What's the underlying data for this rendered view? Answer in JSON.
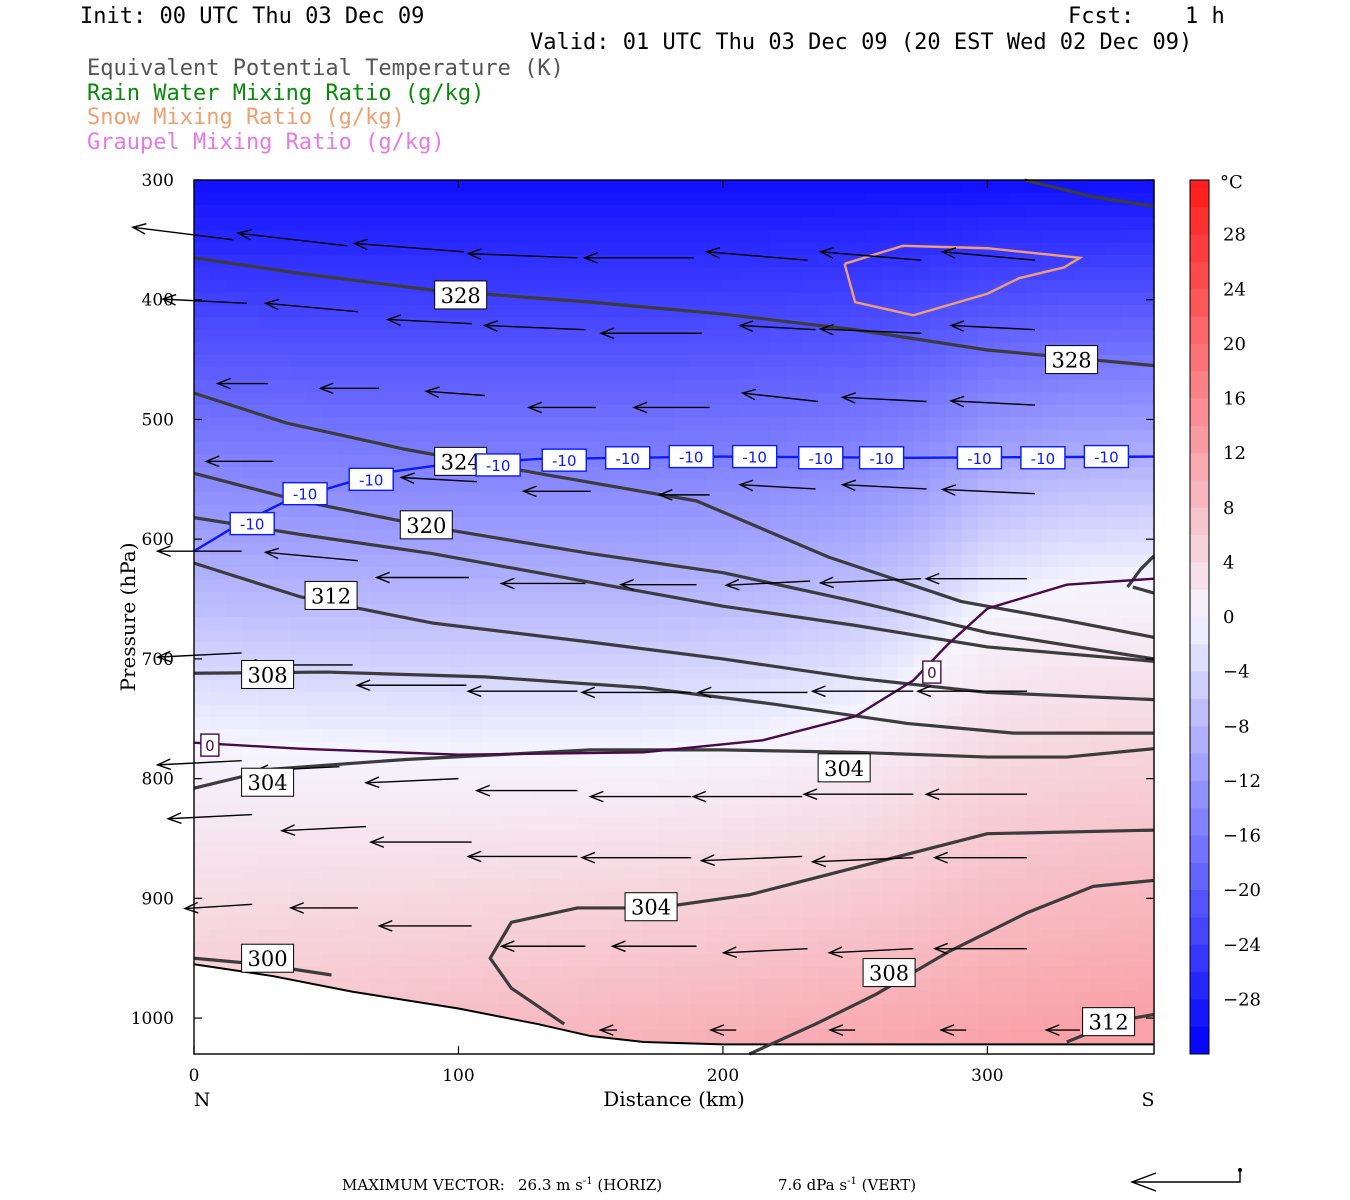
{
  "header": {
    "init": "Init: 00 UTC Thu 03 Dec 09",
    "fcst_label": "Fcst:",
    "fcst_value": "1 h",
    "valid": "Valid: 01 UTC Thu 03 Dec 09 (20 EST Wed 02 Dec 09)"
  },
  "legend_items": [
    {
      "text": "Equivalent Potential Temperature (K)",
      "color": "#555555"
    },
    {
      "text": "Rain Water Mixing Ratio (g/kg)",
      "color": "#0a8a0a"
    },
    {
      "text": "Snow Mixing Ratio (g/kg)",
      "color": "#f0a070"
    },
    {
      "text": "Graupel Mixing Ratio (g/kg)",
      "color": "#e878e8"
    }
  ],
  "chart_data": {
    "type": "heatmap",
    "subtype": "vertical cross-section",
    "xlabel": "Distance (km)",
    "ylabel": "Pressure (hPa)",
    "xlim": [
      0,
      363
    ],
    "ylim": [
      1030,
      300
    ],
    "x_ticks": [
      0,
      100,
      200,
      300
    ],
    "y_ticks": [
      300,
      400,
      500,
      600,
      700,
      800,
      900,
      1000
    ],
    "left_end_label": "N",
    "right_end_label": "S",
    "colorbar": {
      "unit": "°C",
      "tick_values": [
        28,
        24,
        20,
        16,
        12,
        8,
        4,
        0,
        -4,
        -8,
        -12,
        -16,
        -20,
        -24,
        -28
      ],
      "min": -32,
      "max": 32,
      "cold_color": "#0000ff",
      "zero_color": "#f5f5ff",
      "warm_color": "#ff1a1a"
    },
    "temperature_field_trend": "coldest (~-30 °C) at 300 hPa, 0 °C near 770 hPa in the north rising to ~650 hPa in the south, warmest (~12 °C) near the surface in the south",
    "theta_e_contours": [
      {
        "label": "328",
        "points": [
          [
            0,
            365
          ],
          [
            40,
            378
          ],
          [
            90,
            392
          ],
          [
            150,
            402
          ],
          [
            200,
            412
          ],
          [
            250,
            425
          ],
          [
            300,
            442
          ],
          [
            363,
            455
          ]
        ]
      },
      {
        "label": "328",
        "points": [
          [
            314,
            300
          ],
          [
            340,
            314
          ],
          [
            363,
            322
          ]
        ]
      },
      {
        "label": "324",
        "points": [
          [
            0,
            478
          ],
          [
            35,
            503
          ],
          [
            80,
            525
          ],
          [
            130,
            545
          ],
          [
            190,
            568
          ],
          [
            240,
            615
          ],
          [
            290,
            652
          ],
          [
            330,
            668
          ],
          [
            363,
            682
          ]
        ]
      },
      {
        "label": "320",
        "points": [
          [
            0,
            545
          ],
          [
            40,
            568
          ],
          [
            90,
            590
          ],
          [
            150,
            612
          ],
          [
            200,
            628
          ],
          [
            250,
            652
          ],
          [
            300,
            678
          ],
          [
            363,
            700
          ]
        ]
      },
      {
        "label": "312",
        "points": [
          [
            0,
            582
          ],
          [
            40,
            596
          ],
          [
            90,
            612
          ],
          [
            150,
            636
          ],
          [
            200,
            656
          ],
          [
            250,
            672
          ],
          [
            300,
            690
          ],
          [
            363,
            702
          ]
        ]
      },
      {
        "label": "312",
        "points": [
          [
            0,
            620
          ],
          [
            40,
            648
          ],
          [
            90,
            670
          ],
          [
            150,
            686
          ],
          [
            200,
            700
          ],
          [
            250,
            716
          ],
          [
            300,
            728
          ],
          [
            363,
            734
          ]
        ]
      },
      {
        "label": "308",
        "points": [
          [
            0,
            712
          ],
          [
            50,
            711
          ],
          [
            110,
            715
          ],
          [
            170,
            724
          ],
          [
            220,
            738
          ],
          [
            270,
            754
          ],
          [
            310,
            762
          ],
          [
            363,
            762
          ]
        ]
      },
      {
        "label": "304",
        "points": [
          [
            0,
            808
          ],
          [
            30,
            792
          ],
          [
            80,
            784
          ],
          [
            150,
            776
          ],
          [
            200,
            776
          ],
          [
            250,
            778
          ],
          [
            300,
            782
          ],
          [
            330,
            782
          ],
          [
            363,
            775
          ]
        ]
      },
      {
        "label": "304",
        "points": [
          [
            140,
            1005
          ],
          [
            120,
            975
          ],
          [
            112,
            950
          ],
          [
            120,
            920
          ],
          [
            145,
            908
          ],
          [
            175,
            908
          ],
          [
            210,
            897
          ],
          [
            240,
            880
          ],
          [
            300,
            846
          ],
          [
            363,
            843
          ]
        ]
      },
      {
        "label": "308",
        "points": [
          [
            210,
            1030
          ],
          [
            235,
            1005
          ],
          [
            258,
            980
          ],
          [
            285,
            945
          ],
          [
            315,
            912
          ],
          [
            340,
            890
          ],
          [
            363,
            885
          ]
        ]
      },
      {
        "label": "312",
        "points": [
          [
            330,
            1020
          ],
          [
            350,
            1002
          ],
          [
            363,
            997
          ]
        ]
      },
      {
        "label": "300",
        "points": [
          [
            0,
            950
          ],
          [
            25,
            955
          ],
          [
            52,
            964
          ]
        ]
      },
      {
        "label": "",
        "points": [
          [
            353,
            640
          ],
          [
            358,
            625
          ],
          [
            363,
            614
          ]
        ]
      },
      {
        "label": "",
        "points": [
          [
            355,
            640
          ],
          [
            363,
            645
          ]
        ]
      }
    ],
    "isotherm_0c": [
      [
        0,
        770
      ],
      [
        40,
        775
      ],
      [
        100,
        780
      ],
      [
        170,
        778
      ],
      [
        215,
        768
      ],
      [
        250,
        748
      ],
      [
        272,
        718
      ],
      [
        285,
        688
      ],
      [
        300,
        658
      ],
      [
        330,
        638
      ],
      [
        363,
        633
      ]
    ],
    "isotherm_minus10c": [
      [
        0,
        610
      ],
      [
        15,
        590
      ],
      [
        35,
        568
      ],
      [
        70,
        545
      ],
      [
        90,
        539
      ],
      [
        130,
        533
      ],
      [
        200,
        531
      ],
      [
        270,
        532
      ],
      [
        363,
        531
      ]
    ],
    "snow_mixing_ratio_contour": [
      [
        246,
        370
      ],
      [
        268,
        355
      ],
      [
        300,
        357
      ],
      [
        335,
        365
      ],
      [
        329,
        373
      ],
      [
        312,
        382
      ],
      [
        300,
        395
      ],
      [
        272,
        413
      ],
      [
        250,
        402
      ],
      [
        246,
        370
      ]
    ],
    "contour_labels": [
      {
        "text": "328",
        "x": 91,
        "p": 396
      },
      {
        "text": "328",
        "x": 322,
        "p": 450
      },
      {
        "text": "324",
        "x": 91,
        "p": 535
      },
      {
        "text": "320",
        "x": 78,
        "p": 588
      },
      {
        "text": "312",
        "x": 42,
        "p": 647
      },
      {
        "text": "308",
        "x": 18,
        "p": 713
      },
      {
        "text": "304",
        "x": 18,
        "p": 803
      },
      {
        "text": "304",
        "x": 236,
        "p": 791
      },
      {
        "text": "304",
        "x": 163,
        "p": 907
      },
      {
        "text": "308",
        "x": 253,
        "p": 962
      },
      {
        "text": "312",
        "x": 336,
        "p": 1003
      },
      {
        "text": "300",
        "x": 18,
        "p": 950
      }
    ],
    "isotherm_labels": [
      {
        "text": "-10",
        "x": 22,
        "p": 587
      },
      {
        "text": "-10",
        "x": 42,
        "p": 562
      },
      {
        "text": "-10",
        "x": 67,
        "p": 550
      },
      {
        "text": "-10",
        "x": 115,
        "p": 538
      },
      {
        "text": "-10",
        "x": 140,
        "p": 534
      },
      {
        "text": "-10",
        "x": 164,
        "p": 532
      },
      {
        "text": "-10",
        "x": 188,
        "p": 531
      },
      {
        "text": "-10",
        "x": 212,
        "p": 531
      },
      {
        "text": "-10",
        "x": 237,
        "p": 532
      },
      {
        "text": "-10",
        "x": 260,
        "p": 532
      },
      {
        "text": "-10",
        "x": 297,
        "p": 532
      },
      {
        "text": "-10",
        "x": 321,
        "p": 532
      },
      {
        "text": "-10",
        "x": 345,
        "p": 531
      },
      {
        "text": "0",
        "x": 6,
        "p": 772
      },
      {
        "text": "0",
        "x": 279,
        "p": 711
      }
    ],
    "wind_vectors": [
      {
        "x": 15,
        "p": 350,
        "u": -24,
        "w": 3
      },
      {
        "x": 58,
        "p": 355,
        "u": -26,
        "w": 3
      },
      {
        "x": 102,
        "p": 360,
        "u": -26,
        "w": 2
      },
      {
        "x": 145,
        "p": 365,
        "u": -26,
        "w": 1
      },
      {
        "x": 189,
        "p": 365,
        "u": -26,
        "w": 0
      },
      {
        "x": 232,
        "p": 367,
        "u": -24,
        "w": 2
      },
      {
        "x": 275,
        "p": 367,
        "u": -24,
        "w": 2
      },
      {
        "x": 318,
        "p": 367,
        "u": -22,
        "w": 2
      },
      {
        "x": 20,
        "p": 403,
        "u": -20,
        "w": 1
      },
      {
        "x": 62,
        "p": 410,
        "u": -22,
        "w": 2
      },
      {
        "x": 105,
        "p": 420,
        "u": -20,
        "w": 1
      },
      {
        "x": 148,
        "p": 425,
        "u": -24,
        "w": 1
      },
      {
        "x": 192,
        "p": 428,
        "u": -24,
        "w": 0
      },
      {
        "x": 235,
        "p": 425,
        "u": -18,
        "w": 1
      },
      {
        "x": 275,
        "p": 428,
        "u": -24,
        "w": 1
      },
      {
        "x": 318,
        "p": 425,
        "u": -20,
        "w": 1
      },
      {
        "x": 28,
        "p": 470,
        "u": -12,
        "w": 0
      },
      {
        "x": 70,
        "p": 474,
        "u": -14,
        "w": 0
      },
      {
        "x": 110,
        "p": 480,
        "u": -14,
        "w": 1
      },
      {
        "x": 152,
        "p": 490,
        "u": -16,
        "w": 0
      },
      {
        "x": 195,
        "p": 490,
        "u": -18,
        "w": 0
      },
      {
        "x": 236,
        "p": 485,
        "u": -18,
        "w": 2
      },
      {
        "x": 277,
        "p": 485,
        "u": -20,
        "w": 1
      },
      {
        "x": 318,
        "p": 488,
        "u": -20,
        "w": 1
      },
      {
        "x": 30,
        "p": 535,
        "u": -16,
        "w": 0
      },
      {
        "x": 107,
        "p": 552,
        "u": -18,
        "w": 1
      },
      {
        "x": 150,
        "p": 560,
        "u": -16,
        "w": 0
      },
      {
        "x": 195,
        "p": 563,
        "u": -12,
        "w": 0
      },
      {
        "x": 235,
        "p": 558,
        "u": -18,
        "w": 1
      },
      {
        "x": 277,
        "p": 558,
        "u": -20,
        "w": 1
      },
      {
        "x": 318,
        "p": 562,
        "u": -22,
        "w": 1
      },
      {
        "x": 18,
        "p": 610,
        "u": -20,
        "w": 0
      },
      {
        "x": 62,
        "p": 618,
        "u": -22,
        "w": 2
      },
      {
        "x": 104,
        "p": 632,
        "u": -22,
        "w": 0
      },
      {
        "x": 148,
        "p": 637,
        "u": -20,
        "w": 0
      },
      {
        "x": 190,
        "p": 638,
        "u": -18,
        "w": 0
      },
      {
        "x": 233,
        "p": 635,
        "u": -20,
        "w": -1
      },
      {
        "x": 275,
        "p": 633,
        "u": -24,
        "w": -1
      },
      {
        "x": 315,
        "p": 633,
        "u": -24,
        "w": 0
      },
      {
        "x": 18,
        "p": 695,
        "u": -20,
        "w": -1
      },
      {
        "x": 60,
        "p": 705,
        "u": -26,
        "w": 0
      },
      {
        "x": 103,
        "p": 722,
        "u": -26,
        "w": 0
      },
      {
        "x": 145,
        "p": 727,
        "u": -26,
        "w": 0
      },
      {
        "x": 188,
        "p": 728,
        "u": -26,
        "w": 0
      },
      {
        "x": 232,
        "p": 728,
        "u": -26,
        "w": 0
      },
      {
        "x": 272,
        "p": 727,
        "u": -24,
        "w": 0
      },
      {
        "x": 315,
        "p": 727,
        "u": -26,
        "w": 0
      },
      {
        "x": 18,
        "p": 785,
        "u": -20,
        "w": -1
      },
      {
        "x": 55,
        "p": 790,
        "u": -20,
        "w": -1
      },
      {
        "x": 100,
        "p": 800,
        "u": -22,
        "w": -1
      },
      {
        "x": 145,
        "p": 810,
        "u": -24,
        "w": 0
      },
      {
        "x": 188,
        "p": 815,
        "u": -24,
        "w": 0
      },
      {
        "x": 230,
        "p": 815,
        "u": -26,
        "w": 0
      },
      {
        "x": 272,
        "p": 813,
        "u": -26,
        "w": 0
      },
      {
        "x": 315,
        "p": 813,
        "u": -24,
        "w": 0
      },
      {
        "x": 22,
        "p": 830,
        "u": -20,
        "w": -1
      },
      {
        "x": 65,
        "p": 840,
        "u": -20,
        "w": -1
      },
      {
        "x": 105,
        "p": 853,
        "u": -24,
        "w": 0
      },
      {
        "x": 145,
        "p": 865,
        "u": -26,
        "w": 0
      },
      {
        "x": 188,
        "p": 866,
        "u": -26,
        "w": 0
      },
      {
        "x": 230,
        "p": 865,
        "u": -24,
        "w": -1
      },
      {
        "x": 272,
        "p": 866,
        "u": -24,
        "w": -1
      },
      {
        "x": 315,
        "p": 866,
        "u": -22,
        "w": 0
      },
      {
        "x": 22,
        "p": 905,
        "u": -16,
        "w": -1
      },
      {
        "x": 62,
        "p": 908,
        "u": -16,
        "w": 0
      },
      {
        "x": 105,
        "p": 923,
        "u": -22,
        "w": 0
      },
      {
        "x": 148,
        "p": 940,
        "u": -20,
        "w": 0
      },
      {
        "x": 190,
        "p": 940,
        "u": -20,
        "w": 0
      },
      {
        "x": 232,
        "p": 942,
        "u": -20,
        "w": -1
      },
      {
        "x": 272,
        "p": 942,
        "u": -20,
        "w": -1
      },
      {
        "x": 315,
        "p": 942,
        "u": -22,
        "w": 0
      },
      {
        "x": 160,
        "p": 1010,
        "u": -4,
        "w": 0
      },
      {
        "x": 205,
        "p": 1010,
        "u": -6,
        "w": 0
      },
      {
        "x": 250,
        "p": 1010,
        "u": -6,
        "w": 0
      },
      {
        "x": 292,
        "p": 1010,
        "u": -6,
        "w": 0
      },
      {
        "x": 335,
        "p": 1010,
        "u": -8,
        "w": 0
      }
    ],
    "terrain_pressure": [
      [
        0,
        955
      ],
      [
        30,
        965
      ],
      [
        60,
        978
      ],
      [
        100,
        992
      ],
      [
        130,
        1005
      ],
      [
        150,
        1015
      ],
      [
        170,
        1020
      ],
      [
        200,
        1022
      ],
      [
        250,
        1022
      ],
      [
        300,
        1022
      ],
      [
        363,
        1022
      ]
    ]
  },
  "footer": {
    "max_vector_label": "MAXIMUM VECTOR:",
    "horiz": "26.3 m s",
    "horiz_unit": "(HORIZ)",
    "vert": "7.6 dPa s",
    "vert_unit": "(VERT)",
    "exponent": "-1"
  }
}
